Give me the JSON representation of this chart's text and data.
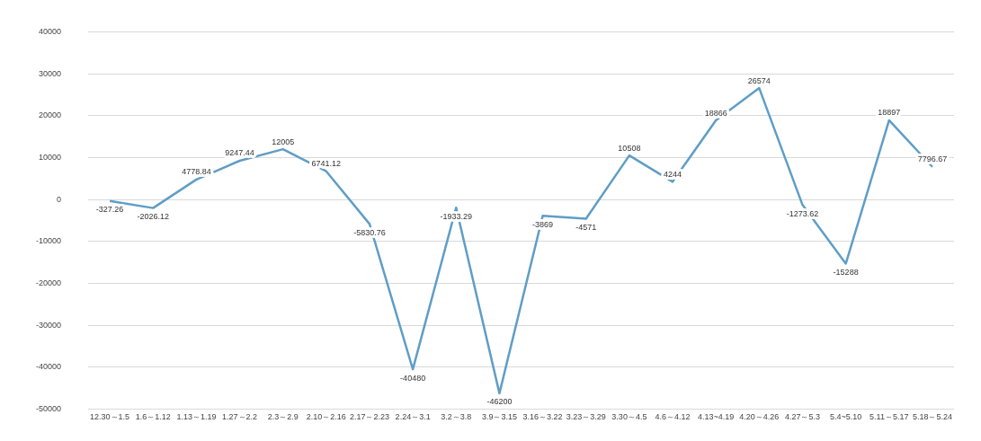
{
  "chart_data": {
    "type": "line",
    "categories": [
      "12.30～1.5",
      "1.6～1.12",
      "1.13～1.19",
      "1.27～2.2",
      "2.3～2.9",
      "2.10～2.16",
      "2.17～2.23",
      "2.24～3.1",
      "3.2～3.8",
      "3.9～3.15",
      "3.16～3.22",
      "3.23～3.29",
      "3.30～4.5",
      "4.6～4.12",
      "4.13~4.19",
      "4.20～4.26",
      "4.27～5.3",
      "5.4~5.10",
      "5.11～5.17",
      "5.18～5.24"
    ],
    "series": [
      {
        "color": "#5f9ec6",
        "values": [
          -327.26,
          -2026.12,
          4778.84,
          9247.44,
          12005,
          6741.12,
          -5830.76,
          -40480,
          -1933.29,
          -46200,
          -3869,
          -4571,
          10508,
          4244,
          18866,
          26574,
          -1273.62,
          -15288,
          18897,
          7796.67
        ]
      }
    ],
    "ylim": [
      -50000,
      40000
    ],
    "yticks": [
      -50000,
      -40000,
      -30000,
      -20000,
      -10000,
      0,
      10000,
      20000,
      30000,
      40000
    ],
    "grid": "y",
    "legend": false,
    "marker": "none",
    "line_style": "solid",
    "data_labels": true
  }
}
